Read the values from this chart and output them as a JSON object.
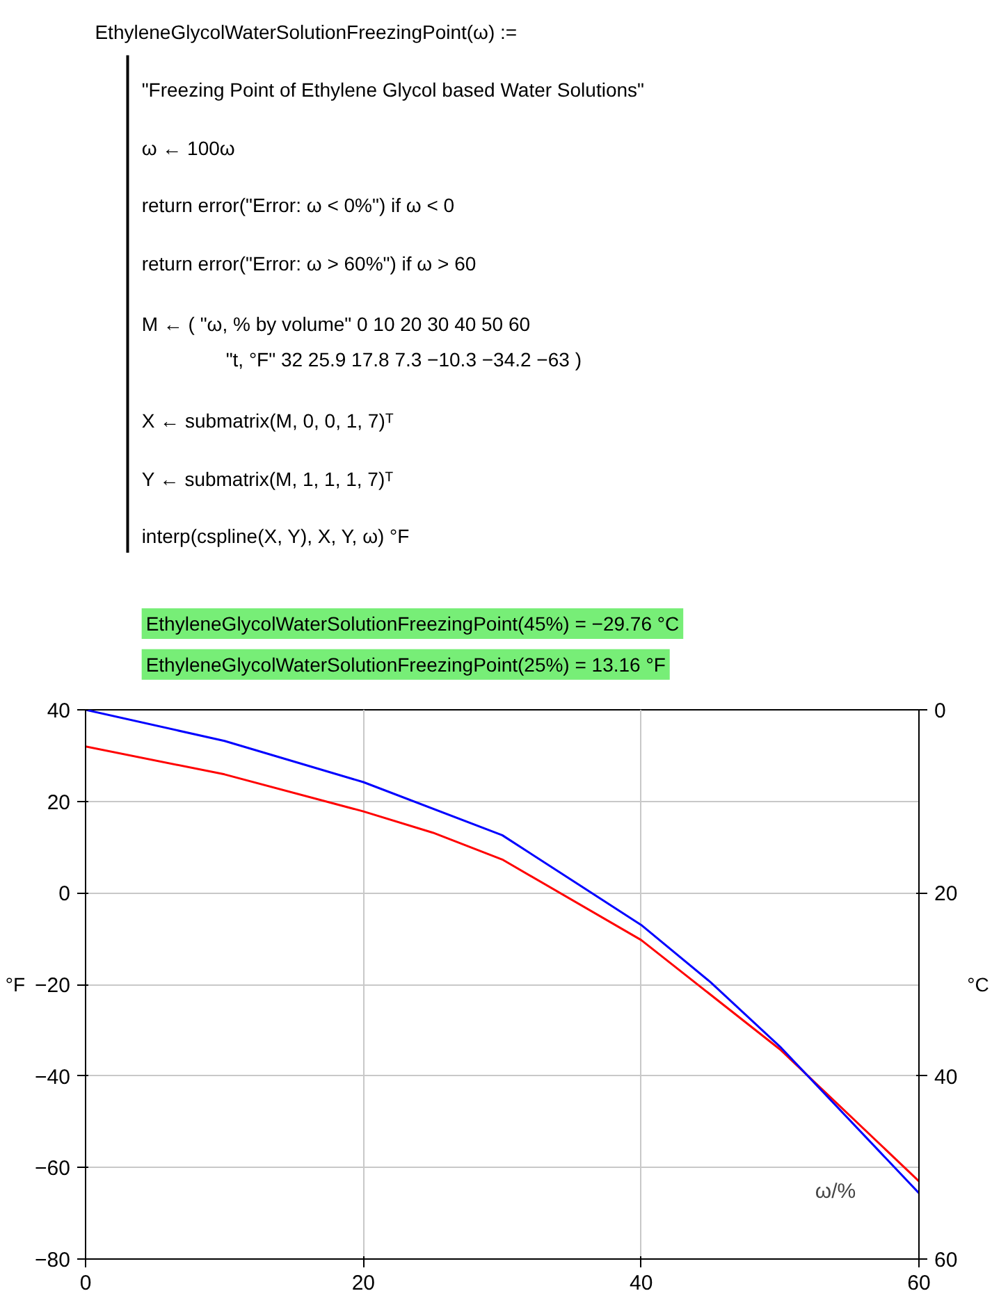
{
  "chart_data": {
    "type": "line",
    "annotations": [
      "EthyleneGlycolWaterSolutionFreezingPoint(ω) :=",
      "\"Freezing Point of Ethylene Glycol based Water Solutions\"",
      "ω ← 100ω",
      "return  error(\"Error: ω < 0%\")  if   ω < 0",
      "return  error(\"Error: ω > 60%\")  if   ω > 60",
      "M ← ( \"ω, % by volume\"   0   10   20   30   40   50   60",
      "\"t, °F\"   32  25.9  17.8  7.3  −10.3  −34.2  −63 )",
      "X ← submatrix(M, 0, 0, 1, 7)ᵀ",
      "Y ← submatrix(M, 1, 1, 1, 7)ᵀ",
      "interp(cspline(X, Y), X, Y, ω) °F",
      "EthyleneGlycolWaterSolutionFreezingPoint(45%) = −29.76 °C",
      "EthyleneGlycolWaterSolutionFreezingPoint(25%) = 13.16 °F"
    ],
    "xlabel": "ω/%",
    "ylabel": "°F",
    "y2label": "°C",
    "xlim": [
      0,
      60
    ],
    "xticks": [
      0,
      20,
      40,
      60
    ],
    "ylim": [
      -80,
      40
    ],
    "yticks": [
      -80,
      -60,
      -40,
      -20,
      0,
      20,
      40
    ],
    "y2lim": [
      60,
      0
    ],
    "y2ticks": [
      0,
      20,
      40,
      60
    ],
    "grid": true,
    "series": [
      {
        "color": "#ff0000",
        "x": [
          0,
          10,
          20,
          25,
          30,
          40,
          50,
          60
        ],
        "values": [
          32,
          25.9,
          17.8,
          13.16,
          7.3,
          -10.3,
          -34.2,
          -63
        ]
      },
      {
        "color": "#0000ff",
        "axis": "y2",
        "x": [
          0,
          10,
          20,
          30,
          40,
          45,
          50,
          60
        ],
        "values": [
          0,
          3.4,
          7.9,
          13.7,
          23.5,
          29.76,
          36.8,
          52.8
        ]
      }
    ]
  }
}
